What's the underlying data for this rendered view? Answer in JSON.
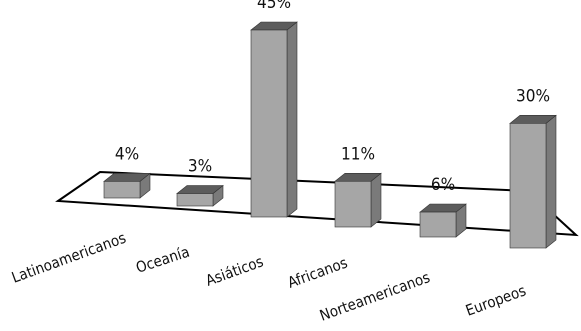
{
  "chart_data": {
    "type": "bar",
    "style": "3d-perspective",
    "categories": [
      "Latinoamericanos",
      "Oceanía",
      "Asiáticos",
      "Africanos",
      "Norteamericanos",
      "Europeos"
    ],
    "values": [
      4,
      3,
      45,
      11,
      6,
      30
    ],
    "value_labels": [
      "4%",
      "3%",
      "45%",
      "11%",
      "6%",
      "30%"
    ],
    "unit": "%",
    "ylim": [
      0,
      45
    ],
    "grid": false,
    "legend": "none",
    "colors": {
      "bar_front": "#a6a6a6",
      "bar_side": "#7a7a7a",
      "bar_top": "#5c5c5c",
      "floor_outline": "#000000"
    }
  }
}
